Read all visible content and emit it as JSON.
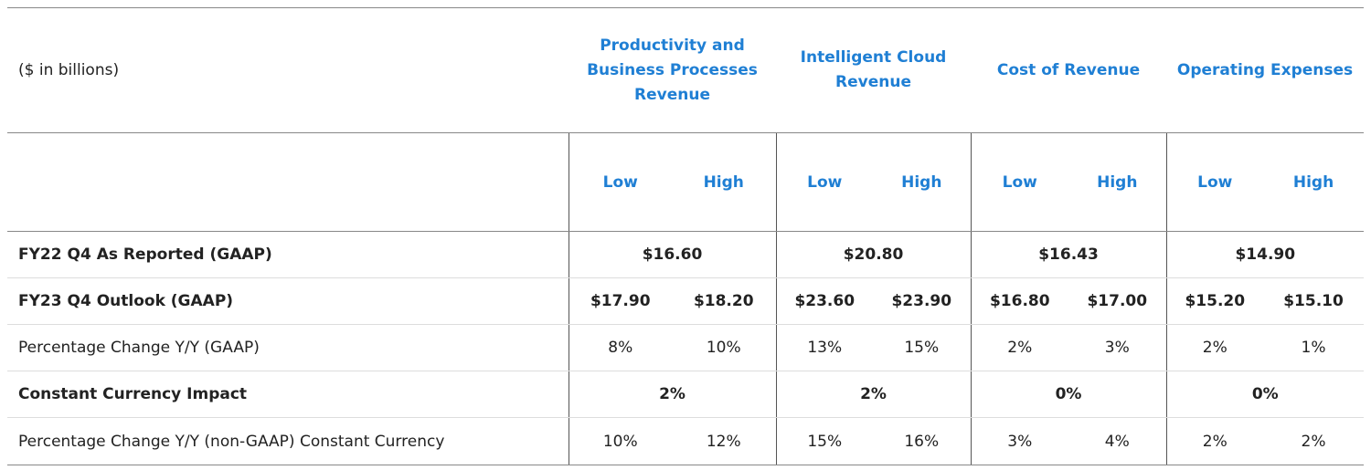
{
  "header": {
    "units_label": "($ in billions)",
    "groups": [
      {
        "line1": "Productivity and",
        "line2": "Business Processes",
        "line3": "Revenue"
      },
      {
        "line1": "Intelligent Cloud",
        "line2": "Revenue"
      },
      {
        "line1": "Cost of Revenue"
      },
      {
        "line1": "Operating Expenses"
      }
    ],
    "low_label": "Low",
    "high_label": "High"
  },
  "rows": {
    "as_reported": {
      "label": "FY22 Q4 As Reported (GAAP)",
      "values": [
        "$16.60",
        "$20.80",
        "$16.43",
        "$14.90"
      ]
    },
    "outlook": {
      "label": "FY23 Q4 Outlook (GAAP)",
      "values": [
        "$17.90",
        "$18.20",
        "$23.60",
        "$23.90",
        "$16.80",
        "$17.00",
        "$15.20",
        "$15.10"
      ]
    },
    "pct_gaap": {
      "label": "Percentage Change Y/Y (GAAP)",
      "values": [
        "8%",
        "10%",
        "13%",
        "15%",
        "2%",
        "3%",
        "2%",
        "1%"
      ]
    },
    "cc_impact": {
      "label": "Constant Currency Impact",
      "values": [
        "2%",
        "2%",
        "0%",
        "0%"
      ]
    },
    "pct_cc": {
      "label": "Percentage Change Y/Y (non-GAAP) Constant Currency",
      "values": [
        "10%",
        "12%",
        "15%",
        "16%",
        "3%",
        "4%",
        "2%",
        "2%"
      ]
    }
  },
  "colors": {
    "accent": "#1f7fd4",
    "divider": "#555555"
  }
}
